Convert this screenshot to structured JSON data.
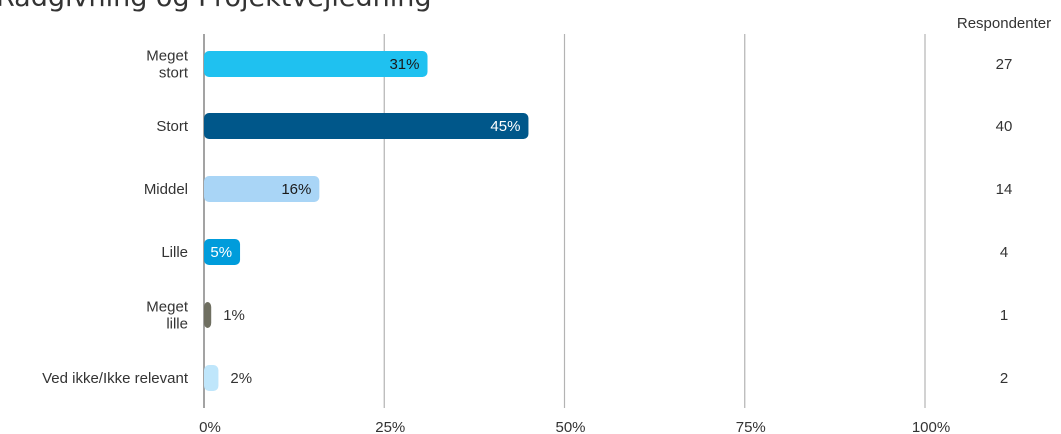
{
  "chart_data": {
    "type": "bar",
    "orientation": "horizontal",
    "title": "Rådgivning og Projektvejledning",
    "respondents_header": "Respondenter",
    "categories": [
      [
        "Meget",
        "stort"
      ],
      [
        "Stort"
      ],
      [
        "Middel"
      ],
      [
        "Lille"
      ],
      [
        "Meget",
        "lille"
      ],
      [
        "Ved ikke/Ikke relevant"
      ]
    ],
    "values": [
      31,
      45,
      16,
      5,
      1,
      2
    ],
    "value_labels": [
      "31%",
      "45%",
      "16%",
      "5%",
      "1%",
      "2%"
    ],
    "respondents": [
      "27",
      "40",
      "14",
      "4",
      "1",
      "2"
    ],
    "bar_colors": [
      "#1FC1F0",
      "#00578A",
      "#A9D5F6",
      "#009CDB",
      "#6F6F61",
      "#BFE6FB"
    ],
    "label_colors": [
      "#1a1a1a",
      "#ffffff",
      "#1a1a1a",
      "#ffffff",
      "#333333",
      "#333333"
    ],
    "xlim": [
      0,
      100
    ],
    "x_ticks": [
      0,
      25,
      50,
      75,
      100
    ],
    "x_tick_labels": [
      "0%",
      "25%",
      "50%",
      "75%",
      "100%"
    ],
    "grid": true
  }
}
